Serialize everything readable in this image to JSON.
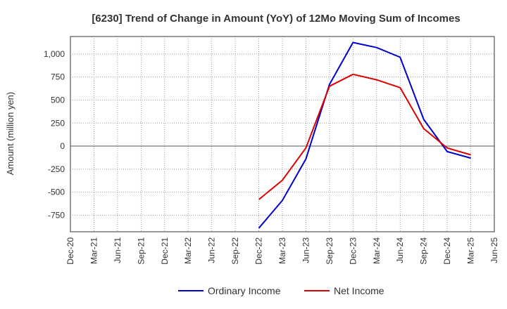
{
  "chart_data": {
    "type": "line",
    "title": "[6230]  Trend of Change in Amount (YoY) of 12Mo Moving Sum of Incomes",
    "xlabel": "",
    "ylabel": "Amount (million yen)",
    "categories": [
      "Dec-20",
      "Mar-21",
      "Jun-21",
      "Sep-21",
      "Dec-21",
      "Mar-22",
      "Jun-22",
      "Sep-22",
      "Dec-22",
      "Mar-23",
      "Jun-23",
      "Sep-23",
      "Dec-23",
      "Mar-24",
      "Jun-24",
      "Sep-24",
      "Dec-24",
      "Mar-25",
      "Jun-25"
    ],
    "yticks": [
      -750,
      -500,
      -250,
      0,
      250,
      500,
      750,
      1000
    ],
    "ytick_labels": [
      "-750",
      "-500",
      "-250",
      "0",
      "250",
      "500",
      "750",
      "1,000"
    ],
    "ylim": [
      -930,
      1190
    ],
    "grid": true,
    "legend_position": "bottom",
    "series": [
      {
        "name": "Ordinary Income",
        "color": "#0000cc",
        "values": [
          null,
          null,
          null,
          null,
          null,
          null,
          null,
          null,
          -890,
          -590,
          -140,
          670,
          1125,
          1070,
          965,
          290,
          -60,
          -130,
          null
        ]
      },
      {
        "name": "Net Income",
        "color": "#dd0000",
        "values": [
          null,
          null,
          null,
          null,
          null,
          null,
          null,
          null,
          -580,
          -370,
          -20,
          650,
          780,
          720,
          635,
          190,
          -20,
          -95,
          null
        ]
      }
    ]
  }
}
